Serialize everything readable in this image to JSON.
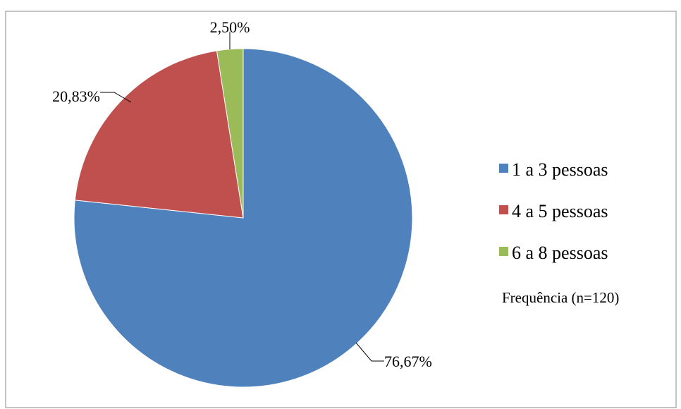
{
  "chart_data": {
    "type": "pie",
    "title": "",
    "categories": [
      "1 a 3 pessoas",
      "4 a 5 pessoas",
      "6 a 8 pessoas"
    ],
    "values": [
      76.67,
      20.83,
      2.5
    ],
    "data_labels": [
      "76,67%",
      "20,83%",
      "2,50%"
    ],
    "colors": [
      "#4F81BD",
      "#C0504D",
      "#9BBB59"
    ],
    "legend_position": "right",
    "legend_note": "Frequência (n=120)",
    "start_angle_deg": 0,
    "direction": "clockwise"
  }
}
